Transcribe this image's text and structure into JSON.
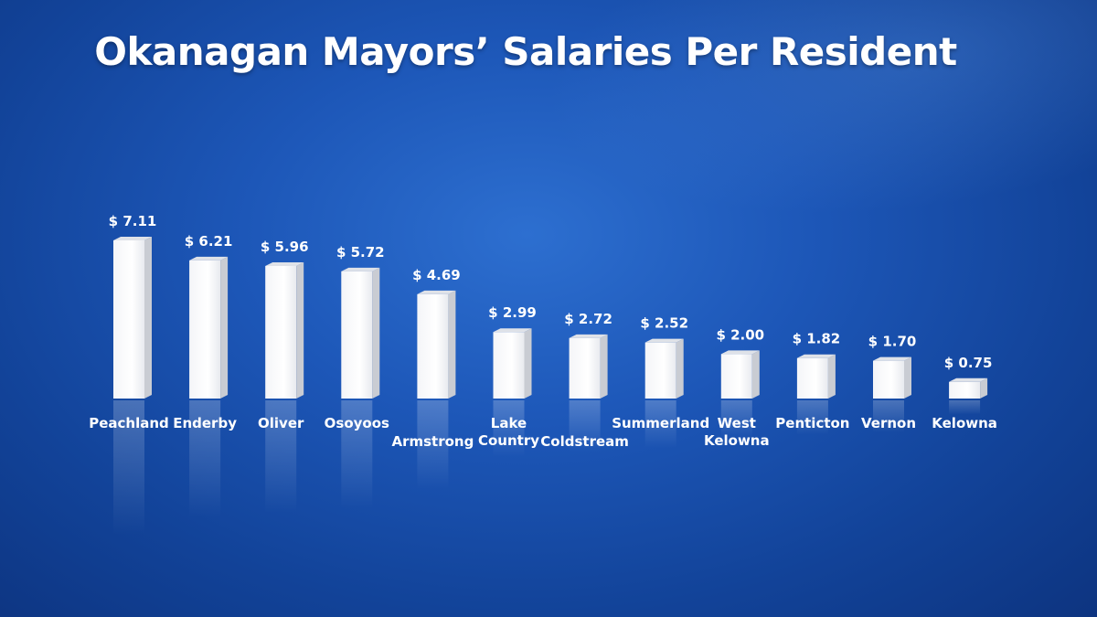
{
  "title": "Okanagan Mayors’ Salaries Per Resident",
  "chart_data": {
    "type": "bar",
    "title": "Okanagan Mayors’ Salaries Per Resident",
    "xlabel": "",
    "ylabel": "",
    "grid": false,
    "categories": [
      [
        "Peachland"
      ],
      [
        "Enderby"
      ],
      [
        "Oliver"
      ],
      [
        "Osoyoos"
      ],
      [
        "Armstrong"
      ],
      [
        "Lake",
        "Country"
      ],
      [
        "Coldstream"
      ],
      [
        "Summerland"
      ],
      [
        "West",
        "Kelowna"
      ],
      [
        "Penticton"
      ],
      [
        "Vernon"
      ],
      [
        "Kelowna"
      ]
    ],
    "values": [
      7.11,
      6.21,
      5.96,
      5.72,
      4.69,
      2.99,
      2.72,
      2.52,
      2.0,
      1.82,
      1.7,
      0.75
    ],
    "value_labels": [
      "$ 7.11",
      "$ 6.21",
      "$ 5.96",
      "$ 5.72",
      "$ 4.69",
      "$ 2.99",
      "$ 2.72",
      "$ 2.52",
      "$ 2.00",
      "$ 1.82",
      "$ 1.70",
      "$ 0.75"
    ],
    "ylim": [
      0,
      7.11
    ],
    "bar_color": "#ffffff",
    "bar_side_color": "#c9ccd3"
  }
}
